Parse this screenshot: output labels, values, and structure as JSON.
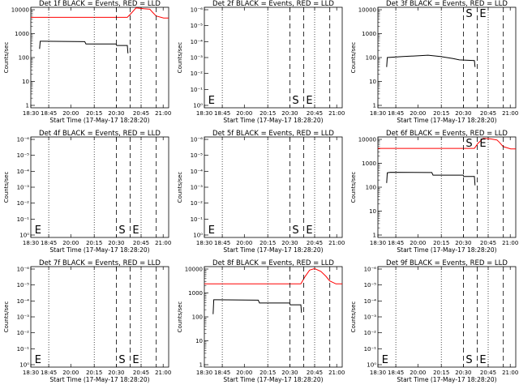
{
  "figure": {
    "x_axis_label": "Start Time (17-May-17 18:28:20)",
    "x_ticks": [
      "18:30",
      "18:45",
      "20:00",
      "20:15",
      "20:30",
      "20:45",
      "21:00"
    ],
    "y_axis_label": "Counts/sec",
    "y_ticks_log": [
      "1",
      "10",
      "100",
      "1000",
      "10000"
    ],
    "y_ticks_linear": [
      "10⁰",
      "10⁻¹",
      "10⁻²",
      "10⁻³",
      "10⁻⁴",
      "10⁻⁵",
      "10⁻⁶"
    ],
    "colors": {
      "events": "#000000",
      "lld": "#ff0000"
    }
  },
  "chart_data": [
    {
      "type": "line",
      "title": "Det 1f BLACK = Events, RED = LLD",
      "xlabel": "Start Time (17-May-17 18:28:20)",
      "ylabel": "Counts/sec",
      "yscale": "log",
      "ylim": [
        1,
        10000
      ],
      "x_ticks": [
        "18:30",
        "18:45",
        "20:00",
        "20:15",
        "20:30",
        "20:45",
        "21:00"
      ],
      "annotations": [],
      "series": [
        {
          "color": "#000000",
          "points": [
            [
              0.07,
              230
            ],
            [
              0.075,
              480
            ],
            [
              0.1,
              480
            ],
            [
              0.43,
              460
            ],
            [
              0.44,
              370
            ],
            [
              0.68,
              370
            ],
            [
              0.685,
              320
            ],
            [
              0.77,
              320
            ],
            [
              0.775,
              150
            ]
          ]
        },
        {
          "color": "#ff0000",
          "points": [
            [
              0,
              4800
            ],
            [
              0.77,
              4800
            ],
            [
              0.8,
              7000
            ],
            [
              0.84,
              12000
            ],
            [
              0.9,
              11000
            ],
            [
              0.95,
              10500
            ],
            [
              0.97,
              8000
            ],
            [
              1.0,
              5500
            ],
            [
              1.06,
              4500
            ],
            [
              1.1,
              4500
            ]
          ]
        }
      ]
    },
    {
      "type": "line",
      "title": "Det 2f BLACK = Events, RED = LLD",
      "xlabel": "Start Time (17-May-17 18:28:20)",
      "ylabel": "Counts/sec",
      "yscale": "linear",
      "ylim": [
        0,
        1e-06
      ],
      "x_ticks": [
        "18:30",
        "18:45",
        "20:00",
        "20:15",
        "20:30",
        "20:45",
        "21:00"
      ],
      "annotations": [
        "E",
        "S",
        "E"
      ],
      "series": []
    },
    {
      "type": "line",
      "title": "Det 3f BLACK = Events, RED = LLD",
      "xlabel": "Start Time (17-May-17 18:28:20)",
      "ylabel": "Counts/sec",
      "yscale": "log",
      "ylim": [
        1,
        10000
      ],
      "x_ticks": [
        "18:30",
        "18:45",
        "20:00",
        "20:15",
        "20:30",
        "20:45",
        "21:00"
      ],
      "annotations": [
        "S",
        "E"
      ],
      "series": [
        {
          "color": "#000000",
          "points": [
            [
              0.07,
              40
            ],
            [
              0.075,
              100
            ],
            [
              0.2,
              110
            ],
            [
              0.4,
              125
            ],
            [
              0.5,
              110
            ],
            [
              0.6,
              90
            ],
            [
              0.65,
              80
            ],
            [
              0.77,
              75
            ],
            [
              0.775,
              40
            ]
          ]
        }
      ]
    },
    {
      "type": "line",
      "title": "Det 4f BLACK = Events, RED = LLD",
      "xlabel": "Start Time (17-May-17 18:28:20)",
      "ylabel": "Counts/sec",
      "yscale": "linear",
      "ylim": [
        0,
        1e-06
      ],
      "x_ticks": [
        "18:30",
        "18:45",
        "20:00",
        "20:15",
        "20:30",
        "20:45",
        "21:00"
      ],
      "annotations": [
        "E",
        "S",
        "E"
      ],
      "series": []
    },
    {
      "type": "line",
      "title": "Det 5f BLACK = Events, RED = LLD",
      "xlabel": "Start Time (17-May-17 18:28:20)",
      "ylabel": "Counts/sec",
      "yscale": "linear",
      "ylim": [
        0,
        1e-06
      ],
      "x_ticks": [
        "18:30",
        "18:45",
        "20:00",
        "20:15",
        "20:30",
        "20:45",
        "21:00"
      ],
      "annotations": [
        "E",
        "S",
        "E"
      ],
      "series": []
    },
    {
      "type": "line",
      "title": "Det 6f BLACK = Events, RED = LLD",
      "xlabel": "Start Time (17-May-17 18:28:20)",
      "ylabel": "Counts/sec",
      "yscale": "log",
      "ylim": [
        1,
        10000
      ],
      "x_ticks": [
        "18:30",
        "18:45",
        "20:00",
        "20:15",
        "20:30",
        "20:45",
        "21:00"
      ],
      "annotations": [
        "S",
        "E"
      ],
      "series": [
        {
          "color": "#000000",
          "points": [
            [
              0.07,
              150
            ],
            [
              0.075,
              400
            ],
            [
              0.1,
              420
            ],
            [
              0.43,
              410
            ],
            [
              0.44,
              320
            ],
            [
              0.68,
              320
            ],
            [
              0.685,
              280
            ],
            [
              0.77,
              280
            ],
            [
              0.775,
              120
            ]
          ]
        },
        {
          "color": "#ff0000",
          "points": [
            [
              0,
              4200
            ],
            [
              0.77,
              4200
            ],
            [
              0.8,
              7000
            ],
            [
              0.84,
              11000
            ],
            [
              0.9,
              10500
            ],
            [
              0.95,
              9500
            ],
            [
              0.97,
              7500
            ],
            [
              1.0,
              5000
            ],
            [
              1.06,
              4000
            ],
            [
              1.1,
              4000
            ]
          ]
        }
      ]
    },
    {
      "type": "line",
      "title": "Det 7f BLACK = Events, RED = LLD",
      "xlabel": "Start Time (17-May-17 18:28:20)",
      "ylabel": "Counts/sec",
      "yscale": "linear",
      "ylim": [
        0,
        1e-06
      ],
      "x_ticks": [
        "18:30",
        "18:45",
        "20:00",
        "20:15",
        "20:30",
        "20:45",
        "21:00"
      ],
      "annotations": [
        "E",
        "S",
        "E"
      ],
      "series": []
    },
    {
      "type": "line",
      "title": "Det 8f BLACK = Events, RED = LLD",
      "xlabel": "Start Time (17-May-17 18:28:20)",
      "ylabel": "Counts/sec",
      "yscale": "log",
      "ylim": [
        1,
        10000
      ],
      "x_ticks": [
        "18:30",
        "18:45",
        "20:00",
        "20:15",
        "20:30",
        "20:45",
        "21:00"
      ],
      "annotations": [],
      "series": [
        {
          "color": "#000000",
          "points": [
            [
              0.07,
              130
            ],
            [
              0.075,
              520
            ],
            [
              0.1,
              520
            ],
            [
              0.43,
              500
            ],
            [
              0.44,
              380
            ],
            [
              0.68,
              380
            ],
            [
              0.685,
              320
            ],
            [
              0.77,
              320
            ],
            [
              0.775,
              150
            ]
          ]
        },
        {
          "color": "#ff0000",
          "points": [
            [
              0,
              2400
            ],
            [
              0.77,
              2400
            ],
            [
              0.8,
              4500
            ],
            [
              0.84,
              9000
            ],
            [
              0.88,
              10500
            ],
            [
              0.93,
              8000
            ],
            [
              0.97,
              5000
            ],
            [
              1.0,
              3200
            ],
            [
              1.05,
              2400
            ],
            [
              1.1,
              2400
            ]
          ]
        }
      ]
    },
    {
      "type": "line",
      "title": "Det 9f BLACK = Events, RED = LLD",
      "xlabel": "Start Time (17-May-17 18:28:20)",
      "ylabel": "Counts/sec",
      "yscale": "linear",
      "ylim": [
        0,
        1e-06
      ],
      "x_ticks": [
        "18:30",
        "18:45",
        "20:00",
        "20:15",
        "20:30",
        "20:45",
        "21:00"
      ],
      "annotations": [
        "E",
        "S",
        "E"
      ],
      "series": []
    }
  ]
}
